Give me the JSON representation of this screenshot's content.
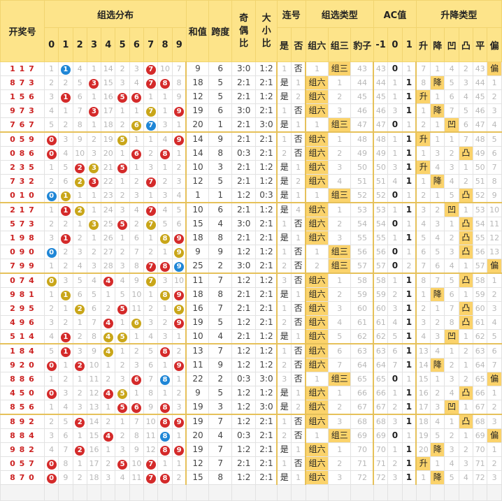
{
  "headers": {
    "draw": "开奖号",
    "distribution": "组选分布",
    "digits": [
      "0",
      "1",
      "2",
      "3",
      "4",
      "5",
      "6",
      "7",
      "8",
      "9"
    ],
    "sum": "和值",
    "span": "跨度",
    "odd_even": "奇偶比",
    "big_small": "大小比",
    "consecutive": "连号",
    "consecutive_opts": [
      "是",
      "否"
    ],
    "group_type": "组选类型",
    "group_opts": [
      "组六",
      "组三",
      "豹子"
    ],
    "ac": "AC值",
    "ac_opts": [
      "-1",
      "0",
      "1"
    ],
    "trend": "升降类型",
    "trend_opts": [
      "升",
      "降",
      "凹",
      "凸",
      "平",
      "偏"
    ]
  },
  "rows": [
    {
      "draw": "117",
      "dist": [
        "1",
        "1",
        "4",
        "1",
        "14",
        "2",
        "3",
        "7",
        "10",
        "7"
      ],
      "sum": "9",
      "span": "6",
      "oe": "3:0",
      "bs": "1:2",
      "cons": [
        "1",
        "否"
      ],
      "grp": [
        "1",
        "组三",
        "43"
      ],
      "ac": [
        "43",
        "0",
        "1"
      ],
      "tr": [
        "7",
        "1",
        "4",
        "2",
        "43",
        "偏"
      ]
    },
    {
      "draw": "873",
      "dist": [
        "2",
        "2",
        "5",
        "3",
        "15",
        "3",
        "4",
        "7",
        "8",
        "8"
      ],
      "sum": "18",
      "span": "5",
      "oe": "2:1",
      "bs": "2:1",
      "cons": [
        "是",
        "1"
      ],
      "grp": [
        "组六",
        "1",
        "44"
      ],
      "ac": [
        "44",
        "1",
        "1"
      ],
      "tr": [
        "8",
        "降",
        "5",
        "3",
        "44",
        "1"
      ]
    },
    {
      "draw": "156",
      "dist": [
        "3",
        "1",
        "6",
        "1",
        "16",
        "5",
        "6",
        "1",
        "1",
        "9"
      ],
      "sum": "12",
      "span": "5",
      "oe": "2:1",
      "bs": "1:2",
      "cons": [
        "是",
        "2"
      ],
      "grp": [
        "组六",
        "2",
        "45"
      ],
      "ac": [
        "45",
        "1",
        "1"
      ],
      "tr": [
        "升",
        "1",
        "6",
        "4",
        "45",
        "2"
      ]
    },
    {
      "draw": "973",
      "dist": [
        "4",
        "1",
        "7",
        "3",
        "17",
        "1",
        "1",
        "7",
        "1",
        "9"
      ],
      "sum": "19",
      "span": "6",
      "oe": "3:0",
      "bs": "2:1",
      "cons": [
        "1",
        "否"
      ],
      "grp": [
        "组六",
        "3",
        "46"
      ],
      "ac": [
        "46",
        "3",
        "1"
      ],
      "tr": [
        "1",
        "降",
        "7",
        "5",
        "46",
        "3"
      ]
    },
    {
      "draw": "767",
      "dist": [
        "5",
        "2",
        "8",
        "1",
        "18",
        "2",
        "6",
        "7",
        "3",
        "1"
      ],
      "sum": "20",
      "span": "1",
      "oe": "2:1",
      "bs": "3:0",
      "cons": [
        "是",
        "1"
      ],
      "grp": [
        "1",
        "组三",
        "47"
      ],
      "ac": [
        "47",
        "0",
        "1"
      ],
      "tr": [
        "2",
        "1",
        "凹",
        "6",
        "47",
        "4"
      ]
    },
    {
      "draw": "059",
      "dist": [
        "0",
        "3",
        "9",
        "2",
        "19",
        "5",
        "1",
        "1",
        "4",
        "9"
      ],
      "sum": "14",
      "span": "9",
      "oe": "2:1",
      "bs": "2:1",
      "cons": [
        "1",
        "否"
      ],
      "grp": [
        "组六",
        "1",
        "48"
      ],
      "ac": [
        "48",
        "1",
        "1"
      ],
      "tr": [
        "升",
        "1",
        "1",
        "7",
        "48",
        "5"
      ]
    },
    {
      "draw": "086",
      "dist": [
        "0",
        "4",
        "10",
        "3",
        "20",
        "1",
        "6",
        "2",
        "8",
        "1"
      ],
      "sum": "14",
      "span": "8",
      "oe": "0:3",
      "bs": "2:1",
      "cons": [
        "2",
        "否"
      ],
      "grp": [
        "组六",
        "2",
        "49"
      ],
      "ac": [
        "49",
        "1",
        "1"
      ],
      "tr": [
        "1",
        "3",
        "2",
        "凸",
        "49",
        "6"
      ]
    },
    {
      "draw": "235",
      "dist": [
        "1",
        "5",
        "2",
        "3",
        "21",
        "5",
        "1",
        "3",
        "1",
        "2"
      ],
      "sum": "10",
      "span": "3",
      "oe": "2:1",
      "bs": "1:2",
      "cons": [
        "是",
        "1"
      ],
      "grp": [
        "组六",
        "3",
        "50"
      ],
      "ac": [
        "50",
        "3",
        "1"
      ],
      "tr": [
        "升",
        "4",
        "3",
        "1",
        "50",
        "7"
      ]
    },
    {
      "draw": "732",
      "dist": [
        "2",
        "6",
        "2",
        "3",
        "22",
        "1",
        "2",
        "7",
        "2",
        "3"
      ],
      "sum": "12",
      "span": "5",
      "oe": "2:1",
      "bs": "1:2",
      "cons": [
        "是",
        "2"
      ],
      "grp": [
        "组六",
        "4",
        "51"
      ],
      "ac": [
        "51",
        "4",
        "1"
      ],
      "tr": [
        "1",
        "降",
        "4",
        "2",
        "51",
        "8"
      ]
    },
    {
      "draw": "010",
      "dist": [
        "0",
        "1",
        "1",
        "1",
        "23",
        "2",
        "3",
        "1",
        "3",
        "4"
      ],
      "sum": "1",
      "span": "1",
      "oe": "1:2",
      "bs": "0:3",
      "cons": [
        "是",
        "1"
      ],
      "grp": [
        "1",
        "组三",
        "52"
      ],
      "ac": [
        "52",
        "0",
        "1"
      ],
      "tr": [
        "2",
        "1",
        "5",
        "凸",
        "52",
        "9"
      ]
    },
    {
      "draw": "217",
      "dist": [
        "1",
        "1",
        "2",
        "1",
        "24",
        "3",
        "4",
        "7",
        "4",
        "5"
      ],
      "sum": "10",
      "span": "6",
      "oe": "2:1",
      "bs": "1:2",
      "cons": [
        "是",
        "4"
      ],
      "grp": [
        "组六",
        "1",
        "53"
      ],
      "ac": [
        "53",
        "1",
        "1"
      ],
      "tr": [
        "3",
        "2",
        "凹",
        "1",
        "53",
        "10"
      ]
    },
    {
      "draw": "573",
      "dist": [
        "2",
        "2",
        "1",
        "3",
        "25",
        "5",
        "2",
        "7",
        "5",
        "6"
      ],
      "sum": "15",
      "span": "4",
      "oe": "3:0",
      "bs": "2:1",
      "cons": [
        "1",
        "否"
      ],
      "grp": [
        "组六",
        "2",
        "54"
      ],
      "ac": [
        "54",
        "0",
        "1"
      ],
      "tr": [
        "4",
        "3",
        "1",
        "凸",
        "54",
        "11"
      ]
    },
    {
      "draw": "198",
      "dist": [
        "3",
        "1",
        "2",
        "1",
        "26",
        "1",
        "6",
        "1",
        "8",
        "9"
      ],
      "sum": "18",
      "span": "8",
      "oe": "2:1",
      "bs": "2:1",
      "cons": [
        "是",
        "1"
      ],
      "grp": [
        "组六",
        "3",
        "55"
      ],
      "ac": [
        "55",
        "1",
        "1"
      ],
      "tr": [
        "5",
        "4",
        "2",
        "凸",
        "55",
        "12"
      ]
    },
    {
      "draw": "090",
      "dist": [
        "0",
        "2",
        "3",
        "2",
        "27",
        "2",
        "7",
        "2",
        "1",
        "9"
      ],
      "sum": "9",
      "span": "9",
      "oe": "1:2",
      "bs": "1:2",
      "cons": [
        "1",
        "否"
      ],
      "grp": [
        "1",
        "组三",
        "56"
      ],
      "ac": [
        "56",
        "0",
        "1"
      ],
      "tr": [
        "6",
        "5",
        "3",
        "凸",
        "56",
        "13"
      ]
    },
    {
      "draw": "799",
      "dist": [
        "1",
        "2",
        "4",
        "3",
        "28",
        "3",
        "8",
        "7",
        "8",
        "9"
      ],
      "sum": "25",
      "span": "2",
      "oe": "3:0",
      "bs": "2:1",
      "cons": [
        "2",
        "否"
      ],
      "grp": [
        "2",
        "组三",
        "57"
      ],
      "ac": [
        "57",
        "0",
        "2"
      ],
      "tr": [
        "7",
        "6",
        "4",
        "1",
        "57",
        "偏"
      ]
    },
    {
      "draw": "074",
      "dist": [
        "0",
        "3",
        "5",
        "4",
        "4",
        "4",
        "9",
        "7",
        "3",
        "10"
      ],
      "sum": "11",
      "span": "7",
      "oe": "1:2",
      "bs": "1:2",
      "cons": [
        "3",
        "否"
      ],
      "grp": [
        "组六",
        "1",
        "58"
      ],
      "ac": [
        "58",
        "1",
        "1"
      ],
      "tr": [
        "8",
        "7",
        "5",
        "凸",
        "58",
        "1"
      ]
    },
    {
      "draw": "981",
      "dist": [
        "1",
        "1",
        "6",
        "5",
        "1",
        "5",
        "10",
        "1",
        "8",
        "9"
      ],
      "sum": "18",
      "span": "8",
      "oe": "2:1",
      "bs": "2:1",
      "cons": [
        "是",
        "1"
      ],
      "grp": [
        "组六",
        "2",
        "59"
      ],
      "ac": [
        "59",
        "2",
        "1"
      ],
      "tr": [
        "1",
        "降",
        "6",
        "1",
        "59",
        "2"
      ]
    },
    {
      "draw": "295",
      "dist": [
        "2",
        "1",
        "2",
        "6",
        "2",
        "5",
        "11",
        "2",
        "1",
        "9"
      ],
      "sum": "16",
      "span": "7",
      "oe": "2:1",
      "bs": "2:1",
      "cons": [
        "1",
        "否"
      ],
      "grp": [
        "组六",
        "3",
        "60"
      ],
      "ac": [
        "60",
        "3",
        "1"
      ],
      "tr": [
        "2",
        "1",
        "7",
        "凸",
        "60",
        "3"
      ]
    },
    {
      "draw": "496",
      "dist": [
        "3",
        "2",
        "1",
        "7",
        "4",
        "1",
        "6",
        "3",
        "2",
        "9"
      ],
      "sum": "19",
      "span": "5",
      "oe": "1:2",
      "bs": "2:1",
      "cons": [
        "2",
        "否"
      ],
      "grp": [
        "组六",
        "4",
        "61"
      ],
      "ac": [
        "61",
        "4",
        "1"
      ],
      "tr": [
        "3",
        "2",
        "8",
        "凸",
        "61",
        "4"
      ]
    },
    {
      "draw": "514",
      "dist": [
        "4",
        "1",
        "2",
        "8",
        "4",
        "5",
        "1",
        "4",
        "3",
        "1"
      ],
      "sum": "10",
      "span": "4",
      "oe": "2:1",
      "bs": "1:2",
      "cons": [
        "是",
        "1"
      ],
      "grp": [
        "组六",
        "5",
        "62"
      ],
      "ac": [
        "62",
        "5",
        "1"
      ],
      "tr": [
        "4",
        "3",
        "凹",
        "1",
        "62",
        "5"
      ]
    },
    {
      "draw": "184",
      "dist": [
        "5",
        "1",
        "3",
        "9",
        "4",
        "1",
        "2",
        "5",
        "8",
        "2"
      ],
      "sum": "13",
      "span": "7",
      "oe": "1:2",
      "bs": "1:2",
      "cons": [
        "1",
        "否"
      ],
      "grp": [
        "组六",
        "6",
        "63"
      ],
      "ac": [
        "63",
        "6",
        "1"
      ],
      "tr": [
        "13",
        "4",
        "1",
        "2",
        "63",
        "6"
      ]
    },
    {
      "draw": "920",
      "dist": [
        "0",
        "1",
        "2",
        "10",
        "1",
        "2",
        "3",
        "6",
        "1",
        "9"
      ],
      "sum": "11",
      "span": "9",
      "oe": "1:2",
      "bs": "1:2",
      "cons": [
        "2",
        "否"
      ],
      "grp": [
        "组六",
        "7",
        "64"
      ],
      "ac": [
        "64",
        "7",
        "1"
      ],
      "tr": [
        "14",
        "降",
        "2",
        "1",
        "64",
        "7"
      ]
    },
    {
      "draw": "886",
      "dist": [
        "1",
        "2",
        "1",
        "11",
        "2",
        "3",
        "6",
        "7",
        "8",
        "1"
      ],
      "sum": "22",
      "span": "2",
      "oe": "0:3",
      "bs": "3:0",
      "cons": [
        "3",
        "否"
      ],
      "grp": [
        "1",
        "组三",
        "65"
      ],
      "ac": [
        "65",
        "0",
        "1"
      ],
      "tr": [
        "15",
        "1",
        "3",
        "2",
        "65",
        "偏"
      ]
    },
    {
      "draw": "450",
      "dist": [
        "0",
        "3",
        "2",
        "12",
        "4",
        "5",
        "1",
        "8",
        "1",
        "2"
      ],
      "sum": "9",
      "span": "5",
      "oe": "1:2",
      "bs": "1:2",
      "cons": [
        "是",
        "1"
      ],
      "grp": [
        "组六",
        "1",
        "66"
      ],
      "ac": [
        "66",
        "1",
        "1"
      ],
      "tr": [
        "16",
        "2",
        "4",
        "凸",
        "66",
        "1"
      ]
    },
    {
      "draw": "856",
      "dist": [
        "1",
        "4",
        "3",
        "13",
        "1",
        "5",
        "6",
        "9",
        "8",
        "3"
      ],
      "sum": "19",
      "span": "3",
      "oe": "1:2",
      "bs": "3:0",
      "cons": [
        "是",
        "2"
      ],
      "grp": [
        "组六",
        "2",
        "67"
      ],
      "ac": [
        "67",
        "2",
        "1"
      ],
      "tr": [
        "17",
        "3",
        "凹",
        "1",
        "67",
        "2"
      ]
    },
    {
      "draw": "892",
      "dist": [
        "2",
        "5",
        "2",
        "14",
        "2",
        "1",
        "7",
        "10",
        "8",
        "9"
      ],
      "sum": "19",
      "span": "7",
      "oe": "1:2",
      "bs": "2:1",
      "cons": [
        "1",
        "否"
      ],
      "grp": [
        "组六",
        "3",
        "68"
      ],
      "ac": [
        "68",
        "3",
        "1"
      ],
      "tr": [
        "18",
        "4",
        "1",
        "凸",
        "68",
        "3"
      ]
    },
    {
      "draw": "884",
      "dist": [
        "3",
        "6",
        "1",
        "15",
        "4",
        "2",
        "8",
        "11",
        "8",
        "1"
      ],
      "sum": "20",
      "span": "4",
      "oe": "0:3",
      "bs": "2:1",
      "cons": [
        "2",
        "否"
      ],
      "grp": [
        "1",
        "组三",
        "69"
      ],
      "ac": [
        "69",
        "0",
        "1"
      ],
      "tr": [
        "19",
        "5",
        "2",
        "1",
        "69",
        "偏"
      ]
    },
    {
      "draw": "982",
      "dist": [
        "4",
        "7",
        "2",
        "16",
        "1",
        "3",
        "9",
        "12",
        "8",
        "9"
      ],
      "sum": "19",
      "span": "7",
      "oe": "1:2",
      "bs": "2:1",
      "cons": [
        "是",
        "1"
      ],
      "grp": [
        "组六",
        "1",
        "70"
      ],
      "ac": [
        "70",
        "1",
        "1"
      ],
      "tr": [
        "20",
        "降",
        "3",
        "2",
        "70",
        "1"
      ]
    },
    {
      "draw": "057",
      "dist": [
        "0",
        "8",
        "1",
        "17",
        "2",
        "5",
        "10",
        "7",
        "1",
        "1"
      ],
      "sum": "12",
      "span": "7",
      "oe": "2:1",
      "bs": "2:1",
      "cons": [
        "1",
        "否"
      ],
      "grp": [
        "组六",
        "2",
        "71"
      ],
      "ac": [
        "71",
        "2",
        "1"
      ],
      "tr": [
        "升",
        "1",
        "4",
        "3",
        "71",
        "2"
      ]
    },
    {
      "draw": "870",
      "dist": [
        "0",
        "9",
        "2",
        "18",
        "3",
        "4",
        "11",
        "7",
        "8",
        "2"
      ],
      "sum": "15",
      "span": "8",
      "oe": "1:2",
      "bs": "2:1",
      "cons": [
        "是",
        "1"
      ],
      "grp": [
        "组六",
        "3",
        "72"
      ],
      "ac": [
        "72",
        "3",
        "1"
      ],
      "tr": [
        "1",
        "降",
        "5",
        "4",
        "72",
        "3"
      ]
    }
  ],
  "hits": [
    {
      "b": {
        "1": "blue",
        "7": "red"
      }
    },
    {
      "b": {
        "3": "red",
        "7": "red",
        "8": "red"
      }
    },
    {
      "b": {
        "1": "red",
        "5": "red",
        "6": "red"
      }
    },
    {
      "b": {
        "3": "red",
        "7": "gold",
        "9": "red"
      }
    },
    {
      "b": {
        "6": "gold",
        "7": "blue"
      }
    },
    {
      "b": {
        "0": "red",
        "5": "gold",
        "9": "red"
      }
    },
    {
      "b": {
        "0": "red",
        "6": "red",
        "8": "red"
      }
    },
    {
      "b": {
        "2": "red",
        "3": "gold",
        "5": "red"
      }
    },
    {
      "b": {
        "2": "gold",
        "3": "red",
        "7": "red"
      }
    },
    {
      "b": {
        "0": "blue",
        "1": "gold"
      }
    },
    {
      "b": {
        "1": "red",
        "2": "gold",
        "7": "red"
      }
    },
    {
      "b": {
        "3": "gold",
        "5": "red",
        "7": "gold"
      }
    },
    {
      "b": {
        "1": "red",
        "8": "gold",
        "9": "red"
      }
    },
    {
      "b": {
        "0": "blue",
        "9": "gold"
      }
    },
    {
      "b": {
        "7": "red",
        "8": "red",
        "9": "blue"
      }
    },
    {
      "b": {
        "0": "gold",
        "4": "red",
        "7": "gold"
      }
    },
    {
      "b": {
        "1": "gold",
        "8": "gold",
        "9": "red"
      }
    },
    {
      "b": {
        "2": "gold",
        "5": "red",
        "9": "gold"
      }
    },
    {
      "b": {
        "4": "red",
        "6": "gold",
        "9": "red"
      }
    },
    {
      "b": {
        "1": "red",
        "4": "gold",
        "5": "gold"
      }
    },
    {
      "b": {
        "1": "red",
        "4": "gold",
        "8": "red"
      }
    },
    {
      "b": {
        "0": "red",
        "2": "red",
        "9": "red"
      }
    },
    {
      "b": {
        "6": "red",
        "8": "blue"
      }
    },
    {
      "b": {
        "0": "red",
        "4": "red",
        "5": "gold"
      }
    },
    {
      "b": {
        "5": "red",
        "6": "red",
        "8": "red"
      }
    },
    {
      "b": {
        "2": "red",
        "8": "red",
        "9": "red"
      }
    },
    {
      "b": {
        "4": "red",
        "8": "blue"
      }
    },
    {
      "b": {
        "2": "red",
        "8": "red",
        "9": "red"
      }
    },
    {
      "b": {
        "0": "red",
        "5": "red",
        "7": "red"
      }
    },
    {
      "b": {
        "0": "red",
        "7": "red",
        "8": "red"
      }
    }
  ]
}
